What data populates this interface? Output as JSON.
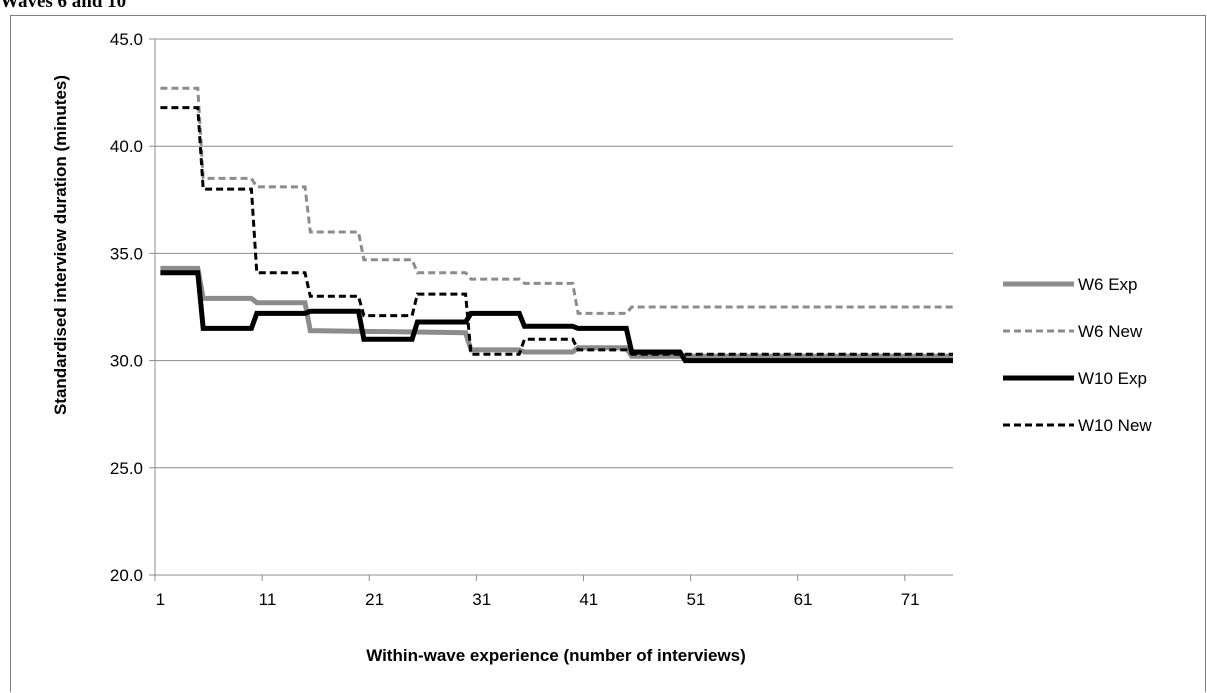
{
  "caption": "Waves 6 and 10",
  "chart_data": {
    "type": "line",
    "xlabel": "Within-wave experience (number of interviews)",
    "ylabel": "Standardised interview duration (minutes)",
    "xlim": [
      1,
      75
    ],
    "ylim": [
      20.0,
      45.0
    ],
    "yticks": [
      "20.0",
      "25.0",
      "30.0",
      "35.0",
      "40.0",
      "45.0"
    ],
    "xticks": [
      "1",
      "11",
      "21",
      "31",
      "41",
      "51",
      "61",
      "71"
    ],
    "grid": "horizontal",
    "legend_position": "right",
    "series": [
      {
        "name": "W6 Exp",
        "color": "#8c8c8c",
        "dash": "solid",
        "width": 5,
        "points": [
          [
            1,
            34.3
          ],
          [
            4.5,
            34.3
          ],
          [
            5,
            32.9
          ],
          [
            9.5,
            32.9
          ],
          [
            10,
            32.7
          ],
          [
            14.5,
            32.7
          ],
          [
            15,
            31.4
          ],
          [
            29.5,
            31.3
          ],
          [
            30,
            30.5
          ],
          [
            34.5,
            30.5
          ],
          [
            35,
            30.4
          ],
          [
            39.5,
            30.4
          ],
          [
            40,
            30.6
          ],
          [
            44.5,
            30.6
          ],
          [
            45,
            30.2
          ],
          [
            75,
            30.2
          ]
        ]
      },
      {
        "name": "W6 New",
        "color": "#8c8c8c",
        "dash": "dashed",
        "width": 3,
        "points": [
          [
            1,
            42.7
          ],
          [
            4.5,
            42.7
          ],
          [
            5,
            38.5
          ],
          [
            9.5,
            38.5
          ],
          [
            10,
            38.1
          ],
          [
            14.5,
            38.1
          ],
          [
            15,
            36.0
          ],
          [
            19.5,
            36.0
          ],
          [
            20,
            34.7
          ],
          [
            24.5,
            34.7
          ],
          [
            25,
            34.1
          ],
          [
            29.5,
            34.1
          ],
          [
            30,
            33.8
          ],
          [
            34.5,
            33.8
          ],
          [
            35,
            33.6
          ],
          [
            39.5,
            33.6
          ],
          [
            40,
            32.2
          ],
          [
            44.5,
            32.2
          ],
          [
            45,
            32.5
          ],
          [
            75,
            32.5
          ]
        ]
      },
      {
        "name": "W10 Exp",
        "color": "#000000",
        "dash": "solid",
        "width": 5,
        "points": [
          [
            1,
            34.1
          ],
          [
            4.5,
            34.1
          ],
          [
            5,
            31.5
          ],
          [
            9.5,
            31.5
          ],
          [
            10,
            32.2
          ],
          [
            14.5,
            32.2
          ],
          [
            15,
            32.3
          ],
          [
            19.5,
            32.3
          ],
          [
            20,
            31.0
          ],
          [
            24.5,
            31.0
          ],
          [
            25,
            31.8
          ],
          [
            29.5,
            31.8
          ],
          [
            30,
            32.2
          ],
          [
            34.5,
            32.2
          ],
          [
            35,
            31.6
          ],
          [
            39.5,
            31.6
          ],
          [
            40,
            31.5
          ],
          [
            44.5,
            31.5
          ],
          [
            45,
            30.4
          ],
          [
            49.5,
            30.4
          ],
          [
            50,
            30.0
          ],
          [
            75,
            30.0
          ]
        ]
      },
      {
        "name": "W10 New",
        "color": "#000000",
        "dash": "dashed",
        "width": 3,
        "points": [
          [
            1,
            41.8
          ],
          [
            4.5,
            41.8
          ],
          [
            5,
            38.0
          ],
          [
            9.5,
            38.0
          ],
          [
            10,
            34.1
          ],
          [
            14.5,
            34.1
          ],
          [
            15,
            33.0
          ],
          [
            19.5,
            33.0
          ],
          [
            20,
            32.1
          ],
          [
            24.5,
            32.1
          ],
          [
            25,
            33.1
          ],
          [
            29.5,
            33.1
          ],
          [
            30,
            30.3
          ],
          [
            34.5,
            30.3
          ],
          [
            35,
            31.0
          ],
          [
            39.5,
            31.0
          ],
          [
            40,
            30.5
          ],
          [
            44.5,
            30.5
          ],
          [
            45,
            30.3
          ],
          [
            75,
            30.3
          ]
        ]
      }
    ]
  }
}
